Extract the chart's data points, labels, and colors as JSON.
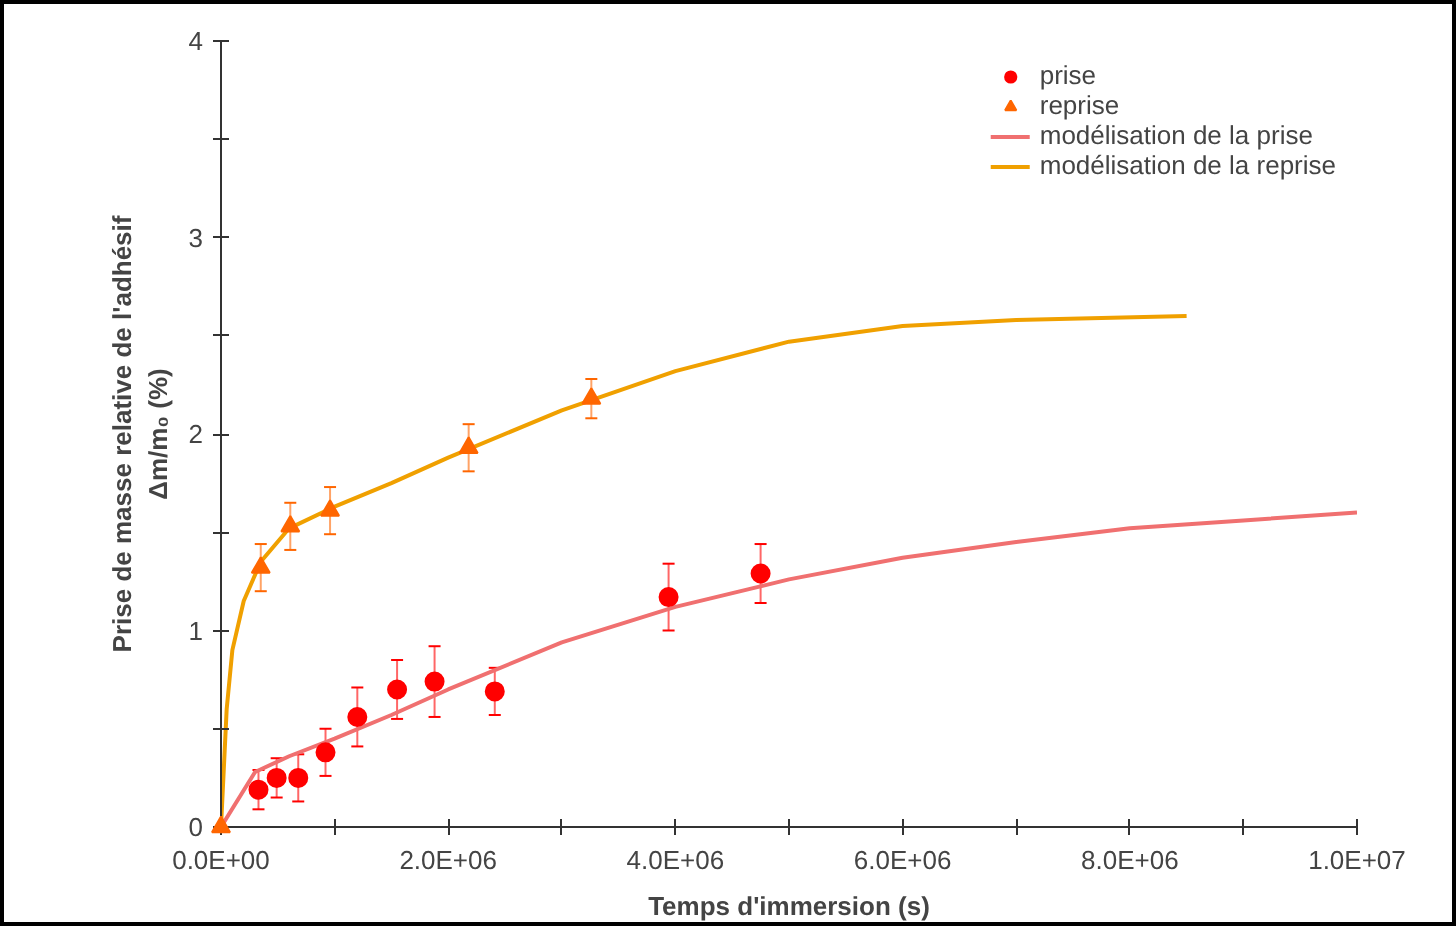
{
  "chart_data": {
    "type": "scatter",
    "xlabel": "Temps d'immersion (s)",
    "ylabel": "Prise de masse relative de l'adhésif\nΔm/m₀ (%)",
    "xlim": [
      0,
      10000000
    ],
    "ylim": [
      0,
      4
    ],
    "xticks": [
      {
        "value": 0,
        "label": "0.0E+00"
      },
      {
        "value": 1000000,
        "label": null
      },
      {
        "value": 2000000,
        "label": "2.0E+06"
      },
      {
        "value": 3000000,
        "label": null
      },
      {
        "value": 4000000,
        "label": "4.0E+06"
      },
      {
        "value": 5000000,
        "label": null
      },
      {
        "value": 6000000,
        "label": "6.0E+06"
      },
      {
        "value": 7000000,
        "label": null
      },
      {
        "value": 8000000,
        "label": "8.0E+06"
      },
      {
        "value": 9000000,
        "label": null
      },
      {
        "value": 10000000,
        "label": "1.0E+07"
      }
    ],
    "yticks": [
      0,
      {
        "value": 0.5,
        "label": null
      },
      1,
      {
        "value": 1.5,
        "label": null
      },
      2,
      {
        "value": 2.5,
        "label": null
      },
      3,
      {
        "value": 3.5,
        "label": null
      },
      4
    ],
    "grid": false,
    "legend": "top right",
    "series": [
      {
        "name": "prise",
        "marker": "circle",
        "color": "#ff0000",
        "x": [
          330000,
          490000,
          680000,
          920000,
          1200000,
          1550000,
          1880000,
          2410000,
          3940000,
          4750000
        ],
        "values": [
          0.19,
          0.25,
          0.25,
          0.38,
          0.56,
          0.7,
          0.74,
          0.69,
          1.17,
          1.29
        ],
        "errors": [
          0.1,
          0.1,
          0.12,
          0.12,
          0.15,
          0.15,
          0.18,
          0.12,
          0.17,
          0.15
        ]
      },
      {
        "name": "reprise",
        "marker": "triangle",
        "color": "#ff6600",
        "x": [
          0,
          350000,
          610000,
          960000,
          2180000,
          3260000
        ],
        "values": [
          0,
          1.32,
          1.53,
          1.61,
          1.93,
          2.18
        ],
        "errors": [
          null,
          0.12,
          0.12,
          0.12,
          0.12,
          0.1
        ]
      },
      {
        "name": "modélisation de la prise",
        "type": "line",
        "marker": "none",
        "color": "#f07070",
        "x": [
          0,
          300000,
          600000,
          1000000,
          1500000,
          2000000,
          3000000,
          4000000,
          5000000,
          6000000,
          7000000,
          8000000,
          9000000,
          10000000
        ],
        "values": [
          0,
          0.28,
          0.36,
          0.45,
          0.57,
          0.7,
          0.94,
          1.12,
          1.26,
          1.37,
          1.45,
          1.52,
          1.56,
          1.6
        ]
      },
      {
        "name": "modélisation de la reprise",
        "type": "line",
        "marker": "none",
        "color": "#f0a000",
        "x": [
          0,
          50000,
          100000,
          200000,
          350000,
          600000,
          1000000,
          1500000,
          2000000,
          3000000,
          4000000,
          5000000,
          6000000,
          7000000,
          8500000
        ],
        "values": [
          0,
          0.6,
          0.9,
          1.15,
          1.35,
          1.52,
          1.63,
          1.75,
          1.88,
          2.12,
          2.32,
          2.47,
          2.55,
          2.58,
          2.6
        ]
      }
    ]
  }
}
